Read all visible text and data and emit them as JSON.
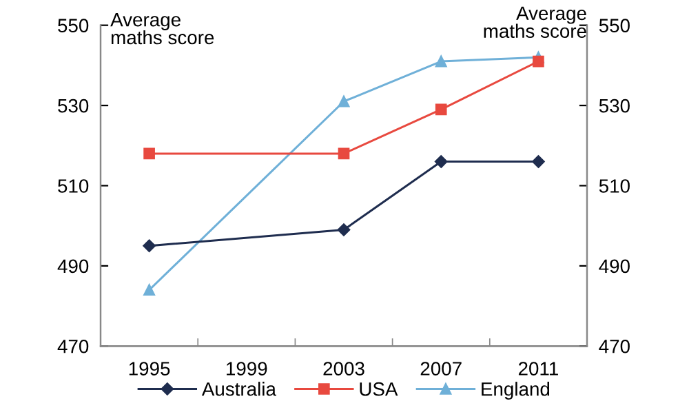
{
  "chart_data": {
    "type": "line",
    "ylabel": "Average\nmaths score",
    "y2label": "Average\nmaths score",
    "x": [
      1995,
      2003,
      2007,
      2011
    ],
    "xlim": [
      1993,
      2013
    ],
    "xticks": [
      1995,
      {
        "value": 1997,
        "label": null
      },
      1999,
      {
        "value": 2001,
        "label": null
      },
      2003,
      {
        "value": 2005,
        "label": null
      },
      2007,
      {
        "value": 2009,
        "label": null
      },
      2011
    ],
    "ylim": [
      470,
      550
    ],
    "yticks": [
      470,
      490,
      510,
      530,
      550
    ],
    "y2lim": [
      470,
      550
    ],
    "y2ticks": [
      470,
      490,
      510,
      530,
      550
    ],
    "series": [
      {
        "name": "Australia",
        "color": "#1f2d4f",
        "marker": "diamond",
        "values": [
          495,
          499,
          516,
          516
        ]
      },
      {
        "name": "USA",
        "color": "#e8493f",
        "marker": "square",
        "values": [
          518,
          518,
          529,
          541
        ]
      },
      {
        "name": "England",
        "color": "#6fb0d8",
        "marker": "triangle",
        "values": [
          484,
          531,
          541,
          542
        ]
      }
    ],
    "legend": "bottom",
    "grid": false,
    "line_style": "solid"
  }
}
